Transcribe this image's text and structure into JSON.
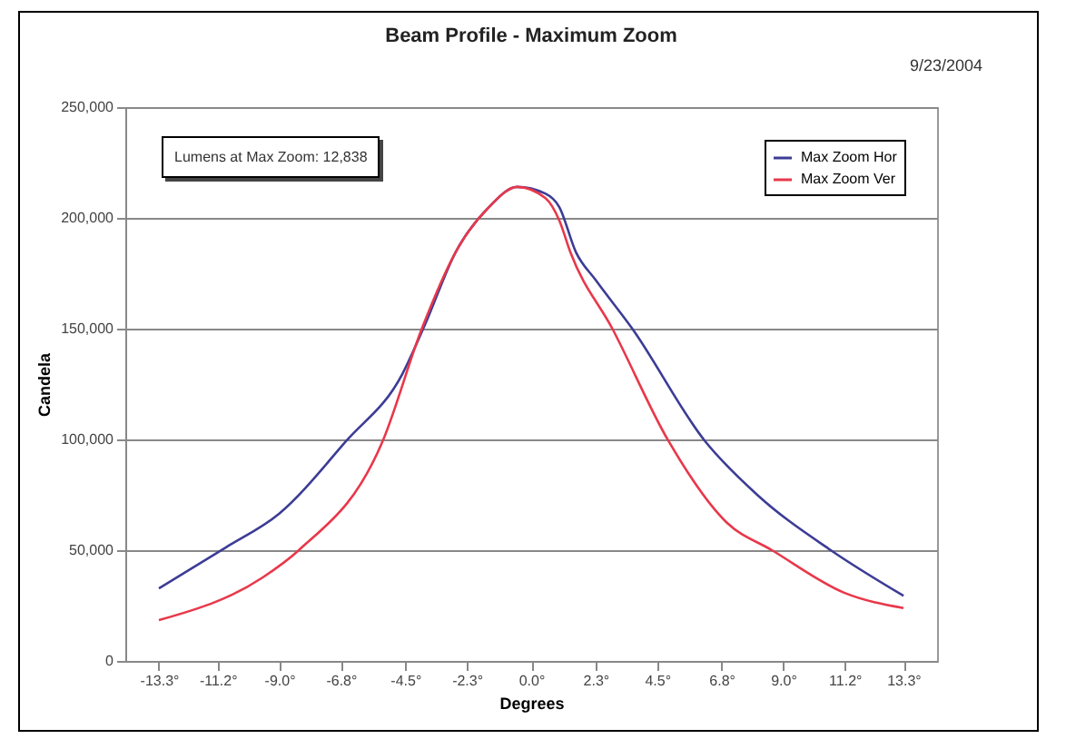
{
  "chart_data": {
    "type": "line",
    "title": "Beam Profile - Maximum Zoom",
    "xlabel": "Degrees",
    "ylabel": "Candela",
    "annotations": [
      "9/23/2004",
      "Lumens at Max Zoom:   12,838"
    ],
    "xlim": [
      -14.5,
      14.5
    ],
    "ylim": [
      0,
      250000
    ],
    "xticks": [
      {
        "value": -13.3,
        "label": "-13.3°"
      },
      {
        "value": -11.2,
        "label": "-11.2°"
      },
      {
        "value": -9.0,
        "label": "-9.0°"
      },
      {
        "value": -6.8,
        "label": "-6.8°"
      },
      {
        "value": -4.5,
        "label": "-4.5°"
      },
      {
        "value": -2.3,
        "label": "-2.3°"
      },
      {
        "value": 0,
        "label": "0.0°"
      },
      {
        "value": 2.3,
        "label": "2.3°"
      },
      {
        "value": 4.5,
        "label": "4.5°"
      },
      {
        "value": 6.8,
        "label": "6.8°"
      },
      {
        "value": 9.0,
        "label": "9.0°"
      },
      {
        "value": 11.2,
        "label": "11.2°"
      },
      {
        "value": 13.3,
        "label": "13.3°"
      }
    ],
    "yticks": [
      0,
      {
        "value": 50000,
        "label": "50,000"
      },
      {
        "value": 100000,
        "label": "100,000"
      },
      {
        "value": 150000,
        "label": "150,000"
      },
      {
        "value": 200000,
        "label": "200,000"
      },
      {
        "value": 250000,
        "label": "250,000"
      }
    ],
    "grid": "y",
    "legend": "top right",
    "series": [
      {
        "name": "Max Zoom Hor",
        "color": "#3c3c96",
        "x": [
          -13.3,
          -10.9,
          -9.0,
          -6.6,
          -4.6,
          -3.8,
          -2.7,
          -1.5,
          -0.5,
          0.5,
          1.0,
          1.6,
          2.3,
          3.6,
          6.2,
          8.1,
          10.7,
          13.3
        ],
        "values": [
          32700,
          51300,
          66500,
          99400,
          129600,
          151600,
          184500,
          205000,
          214000,
          211000,
          205000,
          184500,
          172000,
          150200,
          99400,
          74700,
          50000,
          29400
        ]
      },
      {
        "name": "Max Zoom Ver",
        "color": "#e8384a",
        "x": [
          -13.3,
          -9.6,
          -8.3,
          -5.3,
          -3.9,
          -2.7,
          -1.5,
          -0.5,
          0.5,
          1.0,
          1.4,
          2.9,
          4.9,
          7.0,
          8.6,
          11.2,
          13.3
        ],
        "values": [
          18400,
          37600,
          50000,
          99400,
          150200,
          184500,
          205000,
          214000,
          209000,
          199000,
          184500,
          150000,
          99400,
          62300,
          50000,
          30700,
          23900
        ]
      }
    ]
  }
}
